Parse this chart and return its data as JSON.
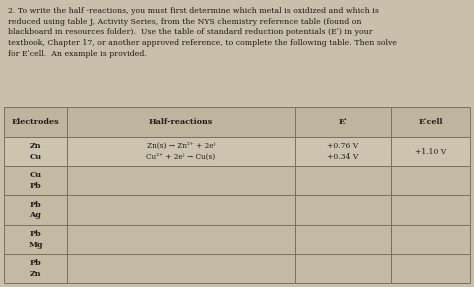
{
  "intro_text": "2. To write the half -reactions, you must first determine which metal is oxidized and which is\nreduced using table J, Activity Series, from the NYS chemistry reference table (found on\nblackboard in resources folder).  Use the table of standard reduction potentials (Eʹ) in your\ntextbook, Chapter 17, or another approved reference, to complete the following table. Then solve\nfor Eʹcell.  An example is provided.",
  "rows": [
    {
      "electrodes": "Zn\nCu",
      "half_reactions": "Zn(s) → Zn²⁺ + 2e⁾\nCu²⁺ + 2e⁾ → Cu(s)",
      "e_prime": "+0.76 V\n+0.34 V",
      "e_cell": "+1.10 V"
    },
    {
      "electrodes": "Cu\nPb",
      "half_reactions": "",
      "e_prime": "",
      "e_cell": ""
    },
    {
      "electrodes": "Pb\nAg",
      "half_reactions": "",
      "e_prime": "",
      "e_cell": ""
    },
    {
      "electrodes": "Pb\nMg",
      "half_reactions": "",
      "e_prime": "",
      "e_cell": ""
    },
    {
      "electrodes": "Pb\nZn",
      "half_reactions": "",
      "e_prime": "",
      "e_cell": ""
    }
  ],
  "bg_color": "#c9bfaa",
  "header_bg": "#bfb49e",
  "row0_bg": "#cdc3ae",
  "empty_row_bg": "#c4b9a3",
  "text_color": "#1c1c1c",
  "line_color": "#7a7060"
}
